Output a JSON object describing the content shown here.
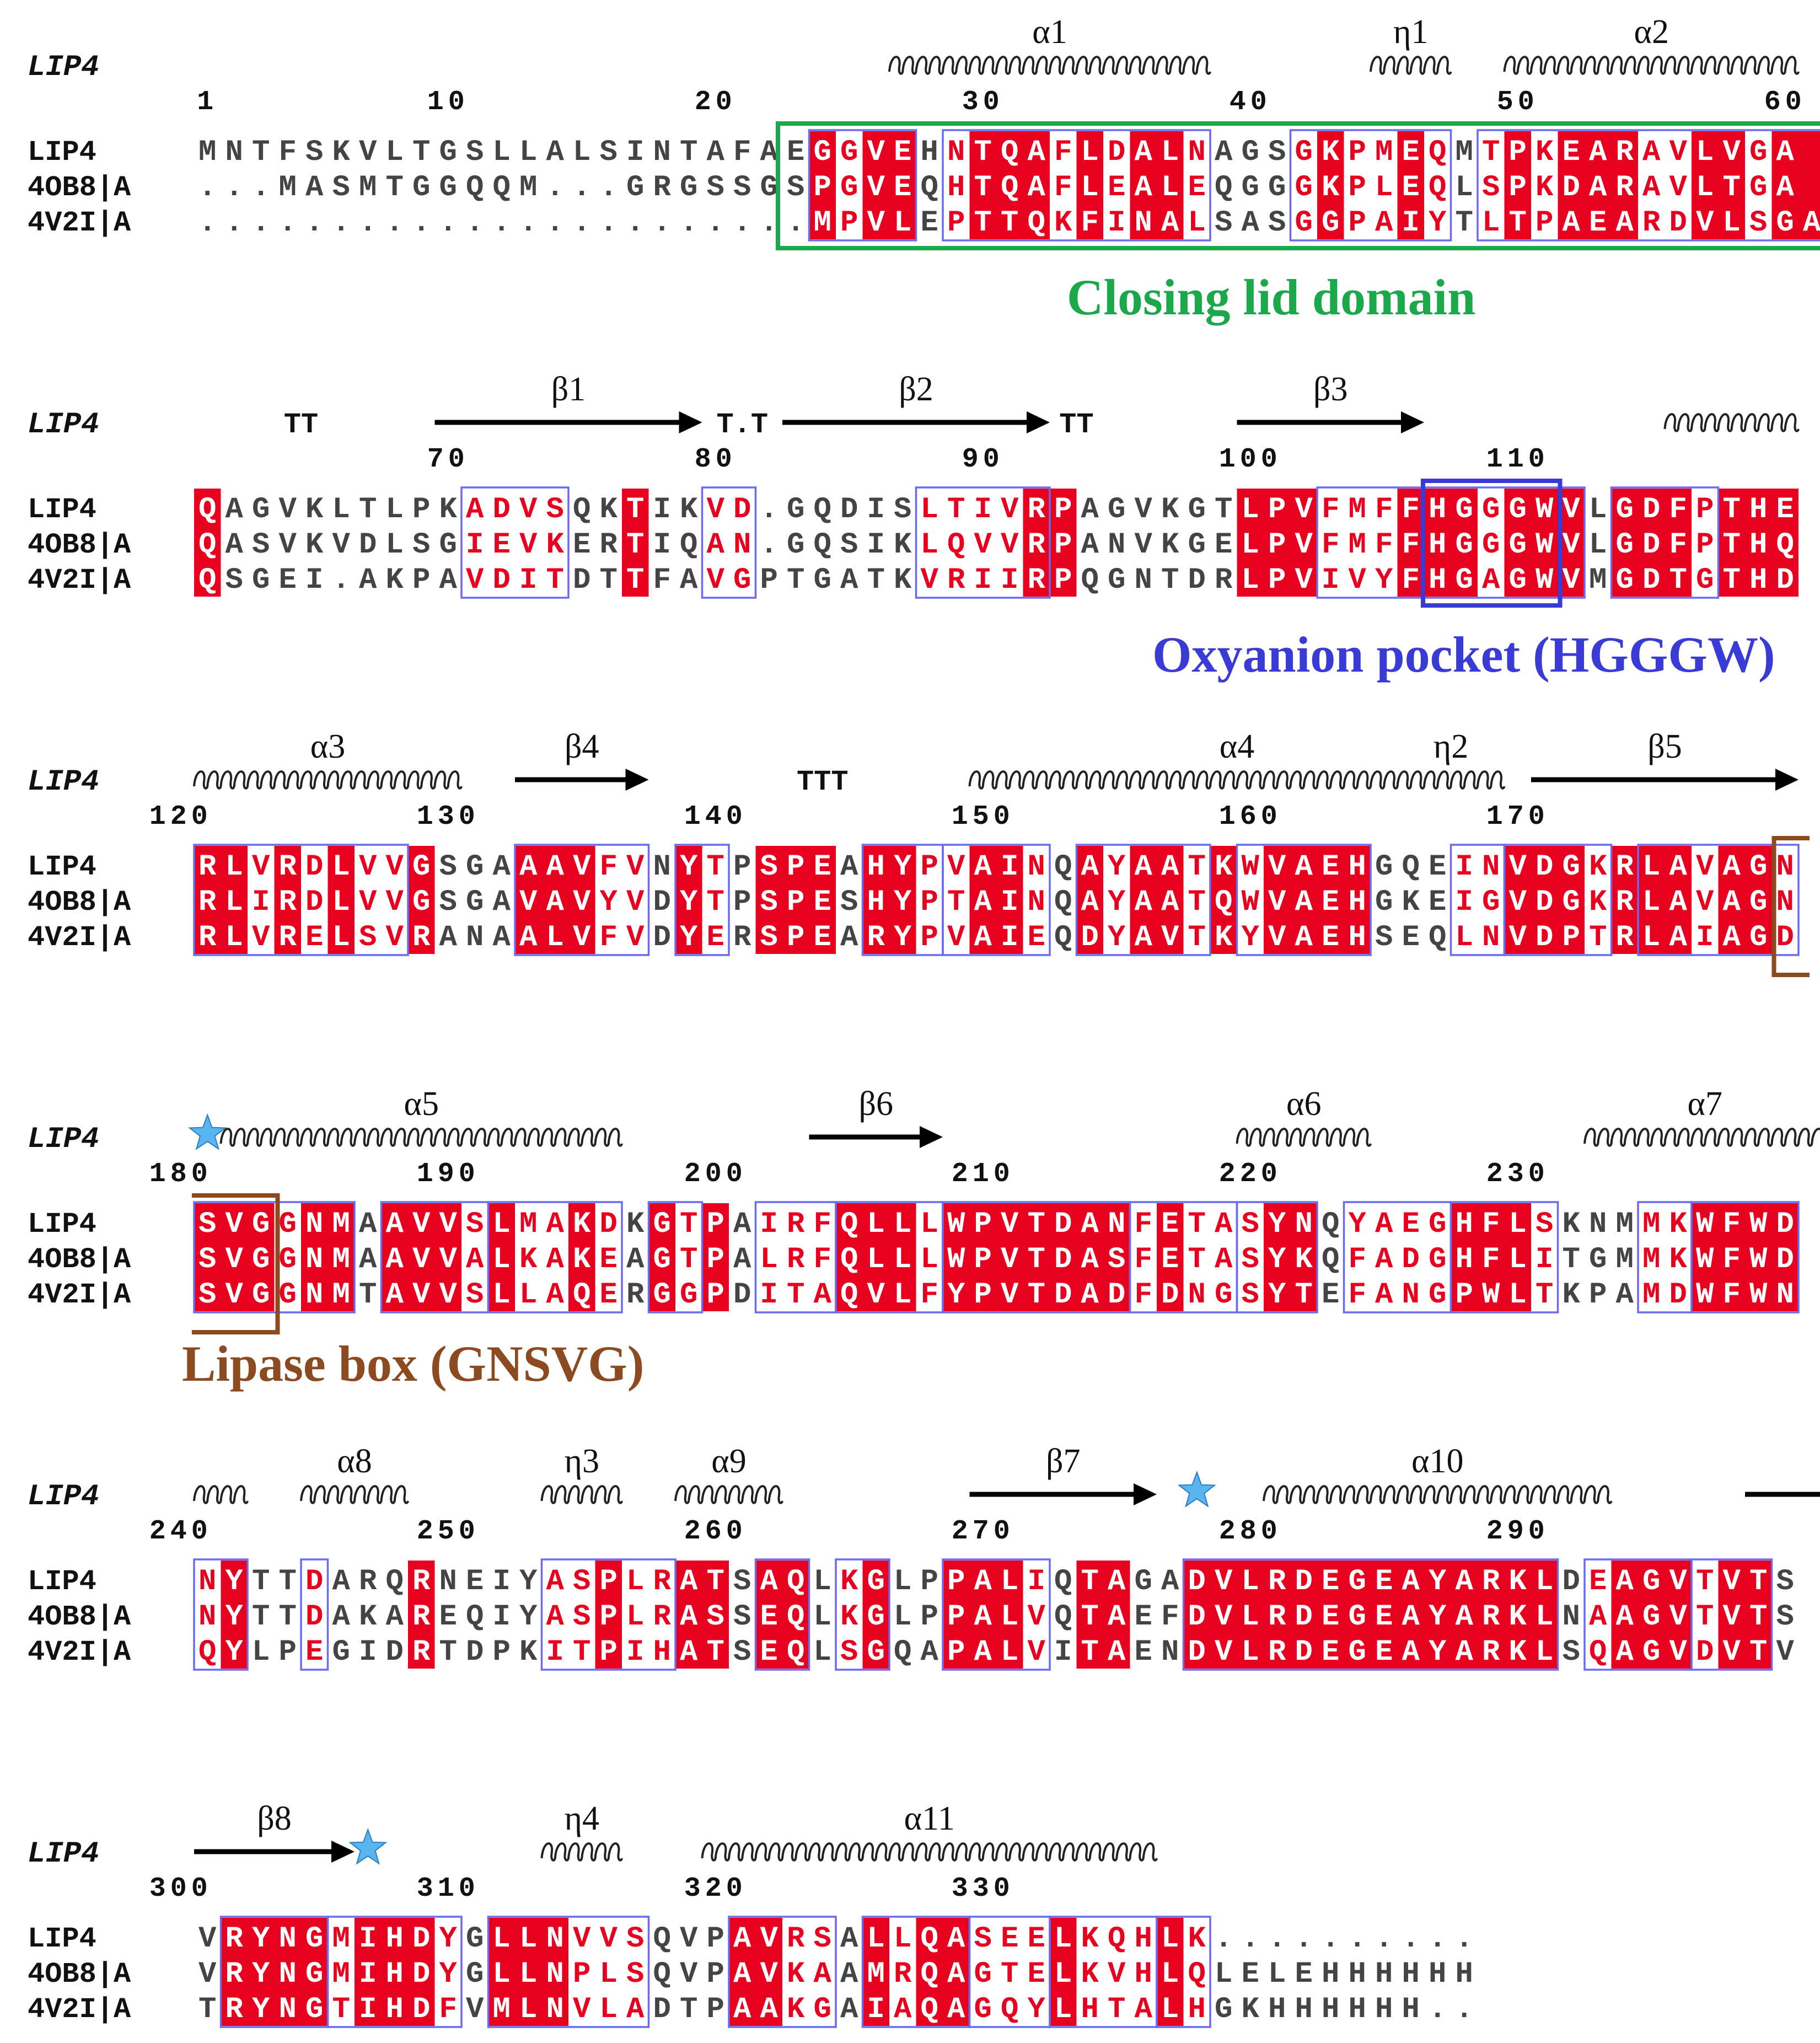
{
  "figure": {
    "structure_label": "LIP4",
    "sequence_names": [
      "LIP4",
      "4OB8|A",
      "4V2I|A"
    ],
    "blocks": [
      {
        "rows": [
          "MNTFSKVLTGSLLALSINTAFAEGGVEHNTQAFLDALNAGSGKPMEQMTPKEARAVLVGA",
          "...MASMTGGQQM...GRGSSGSPGVEQHTQAFLEALEQGGGKPLEQLSPKDARAVLTGA",
          ".......................MPVLEPTTQKFINALSASGGPAIYTLTPAEARDVLSGA"
        ],
        "start": 1,
        "ticks": [
          1,
          10,
          20,
          30,
          40,
          50,
          60
        ],
        "ss": [
          {
            "type": "helix",
            "label": "α1",
            "from": 27,
            "to": 38
          },
          {
            "type": "helix",
            "label": "η1",
            "from": 45,
            "to": 47
          },
          {
            "type": "helix",
            "label": "α2",
            "from": 50,
            "to": 60
          }
        ],
        "red": [
          24,
          26,
          27,
          30,
          31,
          32,
          34,
          36,
          37,
          43,
          46,
          50,
          52,
          53,
          54,
          57,
          58,
          60,
          61
        ],
        "boxes": [
          [
            24,
            27
          ],
          [
            29,
            38
          ],
          [
            42,
            47
          ],
          [
            49,
            61
          ]
        ],
        "annotation": {
          "text": "Closing lid domain",
          "color": "#1aa84a",
          "from": 23,
          "to": 61
        }
      },
      {
        "rows": [
          "QAGVKLTLPKADVSQKTIKVD.GQDISLTIVRPAGVKGTLPVFMFFHGGGWVLGDFPTHE",
          "QASVKVDLSGIEVKERTIQAN.GQSIKLQVVRPANVKGELPVFMFFHGGGWVLGDFPTHQ",
          "QSGEI.AKPAVDITDTTFAVGPTGATKVRIIRPQGNTDRLPVIVYFHGAGWVMGDTGTHD"
        ],
        "start": 61,
        "ticks": [
          70,
          80,
          90,
          100,
          110
        ],
        "ss": [
          {
            "type": "turn",
            "label": "TT",
            "from": 64,
            "to": 65
          },
          {
            "type": "strand",
            "label": "β1",
            "from": 70,
            "to": 79
          },
          {
            "type": "turn",
            "label": "T.T",
            "from": 80,
            "to": 82
          },
          {
            "type": "strand",
            "label": "β2",
            "from": 83,
            "to": 92
          },
          {
            "type": "turn",
            "label": "TT",
            "from": 93,
            "to": 94
          },
          {
            "type": "strand",
            "label": "β3",
            "from": 100,
            "to": 106
          },
          {
            "type": "helix",
            "label": "",
            "from": 116,
            "to": 120
          }
        ],
        "red": [
          61,
          77,
          92,
          93,
          100,
          101,
          102,
          106,
          107,
          108,
          110,
          111,
          112,
          114,
          115,
          116,
          118,
          119,
          120
        ],
        "boxes": [
          [
            71,
            74
          ],
          [
            80,
            81
          ],
          [
            88,
            92
          ],
          [
            103,
            112
          ],
          [
            114,
            117
          ]
        ],
        "annotation": {
          "text": "Oxyanion pocket (HGGGW)",
          "color": "#3a3ad6",
          "from": 107,
          "to": 111
        }
      },
      {
        "rows": [
          "RLVRDLVVGSGAAAVFVNYTPSPEAHYPVAINQAYAATKWVAEHGQEINVDGKRLAVAGN",
          "RLIRDLVVGSGAVAVYVDYTPSPESHYPTAINQAYAATQWVAEHGKEIGVDGKRLAVAGN",
          "RLVRELSVRANAALVFVDYERSPEARYPVAIEQDYAVTKYVAEHSEQLNVDPTRLAIAGD"
        ],
        "start": 121,
        "ticks": [
          120,
          130,
          140,
          150,
          160,
          170
        ],
        "ss": [
          {
            "type": "helix",
            "label": "α3",
            "from": 121,
            "to": 130
          },
          {
            "type": "strand",
            "label": "β4",
            "from": 133,
            "to": 137
          },
          {
            "type": "turn",
            "label": "TTT",
            "from": 143,
            "to": 145
          },
          {
            "type": "helix",
            "label": "α4",
            "from": 150,
            "to": 169
          },
          {
            "type": "label",
            "label": "η2",
            "from": 166,
            "to": 169
          },
          {
            "type": "strand",
            "label": "β5",
            "from": 171,
            "to": 180
          }
        ],
        "red": [
          121,
          122,
          124,
          126,
          129,
          133,
          134,
          135,
          139,
          142,
          143,
          144,
          146,
          147,
          150,
          151,
          154,
          156,
          157,
          159,
          161,
          162,
          163,
          164,
          170,
          171,
          172,
          174,
          175,
          176,
          178,
          179
        ],
        "boxes": [
          [
            121,
            128
          ],
          [
            133,
            137
          ],
          [
            139,
            140
          ],
          [
            146,
            148
          ],
          [
            149,
            152
          ],
          [
            154,
            158
          ],
          [
            160,
            164
          ],
          [
            168,
            169
          ],
          [
            170,
            173
          ],
          [
            175,
            180
          ]
        ],
        "annotation": null
      },
      {
        "rows": [
          "SVGGNMAAVVSLMAKDKGTPAIRFQLLLWPVTDANFETASYNQYAEGHFLSKNMMKWFWD",
          "SVGGNMAAVVALKAKEAGTPALRFQLLLWPVTDASFETASYKQFADGHFLITGMMKWFWD",
          "SVGGNMTAVVSLLAQERGGPDITAQVLFYPVTDADFDNGSYTEFANGPWLTKPAMDWFWN"
        ],
        "start": 181,
        "ticks": [
          180,
          190,
          200,
          210,
          220,
          230
        ],
        "ss": [
          {
            "type": "helix",
            "label": "α5",
            "from": 182,
            "to": 196
          },
          {
            "type": "strand",
            "label": "β6",
            "from": 204,
            "to": 208
          },
          {
            "type": "helix",
            "label": "α6",
            "from": 220,
            "to": 224
          },
          {
            "type": "helix",
            "label": "α7",
            "from": 233,
            "to": 241
          }
        ],
        "red": [
          181,
          182,
          183,
          185,
          186,
          188,
          189,
          190,
          192,
          195,
          198,
          200,
          205,
          206,
          207,
          209,
          210,
          211,
          212,
          213,
          214,
          215,
          217,
          221,
          222,
          228,
          229,
          230,
          237,
          238,
          239,
          240
        ],
        "boxes": [
          [
            181,
            186
          ],
          [
            188,
            191
          ],
          [
            192,
            196
          ],
          [
            198,
            199
          ],
          [
            202,
            204
          ],
          [
            205,
            208
          ],
          [
            209,
            215
          ],
          [
            216,
            219
          ],
          [
            220,
            222
          ],
          [
            224,
            227
          ],
          [
            228,
            231
          ],
          [
            235,
            236
          ],
          [
            237,
            240
          ]
        ],
        "annotation": {
          "text": "Lipase box (GNSVG)",
          "color": "#8b4a1f",
          "from": 181,
          "to": 183
        },
        "star_positions": [
          181
        ]
      },
      {
        "rows": [
          "NYTTDARQRNEIYASPLRATSAQLKGLPPALIQTAGADVLRDEGEAYARKLDEAGVTVTS",
          "NYTTDAKAREQIYASPLRASSEQLKGLPPALVQTAEFDVLRDEGEAYARKLNAAGVTVTS",
          "QYLPEGIDRTDPKITPIHATSEQLSGQAPALVITAENDVLRDEGEAYARKLSQAGVDVTV"
        ],
        "start": 241,
        "ticks": [
          240,
          250,
          260,
          270,
          280,
          290
        ],
        "ss": [
          {
            "type": "helix",
            "label": "",
            "from": 241,
            "to": 242
          },
          {
            "type": "helix",
            "label": "α8",
            "from": 245,
            "to": 248
          },
          {
            "type": "helix",
            "label": "η3",
            "from": 254,
            "to": 256
          },
          {
            "type": "helix",
            "label": "α9",
            "from": 259,
            "to": 262
          },
          {
            "type": "strand",
            "label": "β7",
            "from": 270,
            "to": 276
          },
          {
            "type": "helix",
            "label": "α10",
            "from": 281,
            "to": 293
          },
          {
            "type": "line",
            "label": "",
            "from": 299,
            "to": 301
          }
        ],
        "red": [
          242,
          249,
          256,
          259,
          260,
          262,
          263,
          266,
          269,
          270,
          271,
          274,
          275,
          278,
          279,
          280,
          281,
          282,
          283,
          284,
          285,
          286,
          287,
          288,
          289,
          290,
          291,
          294,
          295,
          296,
          298,
          299
        ],
        "boxes": [
          [
            241,
            242
          ],
          [
            245,
            245
          ],
          [
            254,
            258
          ],
          [
            262,
            263
          ],
          [
            265,
            266
          ],
          [
            269,
            272
          ],
          [
            278,
            291
          ],
          [
            293,
            296
          ],
          [
            297,
            299
          ]
        ],
        "annotation": null,
        "star_positions": [
          278
        ]
      },
      {
        "rows": [
          "VRYNGMIHDYGLLNVVSQVPAVRSALLQASEELKQHLK..........",
          "VRYNGMIHDYGLLNPLSQVPAVKAAMRQAGTELKVHLQLELEHHHHHH",
          "TRYNGTIHDFVMLNVLADTPAAKGAIAQAGQYLHTALHGKHHHHHH.."
        ],
        "start": 301,
        "ticks": [
          300,
          310,
          320,
          330
        ],
        "ss": [
          {
            "type": "strand",
            "label": "β8",
            "from": 301,
            "to": 306
          },
          {
            "type": "helix",
            "label": "η4",
            "from": 314,
            "to": 316
          },
          {
            "type": "helix",
            "label": "α11",
            "from": 320,
            "to": 336
          }
        ],
        "red": [
          302,
          303,
          304,
          305,
          307,
          308,
          309,
          312,
          313,
          314,
          321,
          322,
          326,
          328,
          329,
          333,
          337
        ],
        "boxes": [
          [
            302,
            305
          ],
          [
            306,
            310
          ],
          [
            312,
            317
          ],
          [
            321,
            324
          ],
          [
            326,
            329
          ],
          [
            330,
            332
          ],
          [
            333,
            336
          ],
          [
            337,
            338
          ]
        ],
        "annotation": null,
        "star_positions": [
          307
        ]
      }
    ]
  },
  "colors": {
    "red_fill": "#e8001f",
    "red_text": "#e8001f",
    "box_stroke": "#6b6bef",
    "plain_text": "#444444",
    "lid_green": "#1aa84a",
    "oxyanion_blue": "#3a3ad6",
    "lipase_brown": "#8b4a1f",
    "star_blue": "#5ab4f0"
  }
}
